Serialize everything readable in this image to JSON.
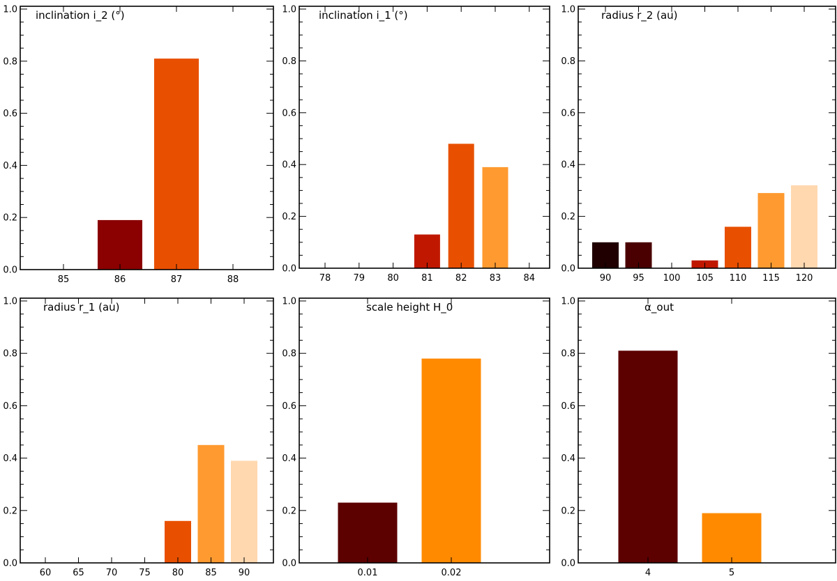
{
  "chart_data": [
    {
      "type": "bar",
      "title": "inclination i_2 (°)",
      "categories": [
        "85",
        "86",
        "87",
        "88"
      ],
      "values": [
        0,
        0.19,
        0.81,
        0
      ],
      "colors": [
        "#8b0000",
        "#8b0000",
        "#e85000",
        "#e85000"
      ],
      "ylim": [
        0,
        1.0
      ],
      "yticks": [
        "0.0",
        "0.2",
        "0.4",
        "0.6",
        "0.8",
        "1.0"
      ],
      "xlabel": "",
      "ylabel": ""
    },
    {
      "type": "bar",
      "title": "inclination i_1 (°)",
      "categories": [
        "78",
        "79",
        "80",
        "81",
        "82",
        "83",
        "84"
      ],
      "values": [
        0,
        0,
        0,
        0.13,
        0.48,
        0.39,
        0
      ],
      "colors": [
        "#5a0000",
        "#5a0000",
        "#5a0000",
        "#c01800",
        "#e85000",
        "#ff9a30",
        "#ffd8b0"
      ],
      "ylim": [
        0,
        1.0
      ],
      "yticks": [
        "0.0",
        "0.2",
        "0.4",
        "0.6",
        "0.8",
        "1.0"
      ],
      "xlabel": "",
      "ylabel": ""
    },
    {
      "type": "bar",
      "title": "radius r_2 (au)",
      "categories": [
        "90",
        "95",
        "100",
        "105",
        "110",
        "115",
        "120"
      ],
      "values": [
        0.1,
        0.1,
        0,
        0.03,
        0.16,
        0.29,
        0.32
      ],
      "colors": [
        "#200000",
        "#4a0000",
        "#7a0000",
        "#c01800",
        "#e85000",
        "#ff9a30",
        "#ffd8b0"
      ],
      "ylim": [
        0,
        1.0
      ],
      "yticks": [
        "0.0",
        "0.2",
        "0.4",
        "0.6",
        "0.8",
        "1.0"
      ],
      "xlabel": "",
      "ylabel": ""
    },
    {
      "type": "bar",
      "title": "radius r_1 (au)",
      "categories": [
        "60",
        "65",
        "70",
        "75",
        "80",
        "85",
        "90"
      ],
      "values": [
        0,
        0,
        0,
        0,
        0.16,
        0.45,
        0.39
      ],
      "colors": [
        "#200000",
        "#4a0000",
        "#7a0000",
        "#c01800",
        "#e85000",
        "#ff9a30",
        "#ffd8b0"
      ],
      "ylim": [
        0,
        1.0
      ],
      "yticks": [
        "0.0",
        "0.2",
        "0.4",
        "0.6",
        "0.8",
        "1.0"
      ],
      "xlabel": "",
      "ylabel": ""
    },
    {
      "type": "bar",
      "title": "scale height H_0",
      "categories": [
        "0.01",
        "0.02"
      ],
      "values": [
        0.23,
        0.78
      ],
      "colors": [
        "#5c0000",
        "#ff8a00"
      ],
      "ylim": [
        0,
        1.0
      ],
      "yticks": [
        "0.0",
        "0.2",
        "0.4",
        "0.6",
        "0.8",
        "1.0"
      ],
      "xlabel": "",
      "ylabel": ""
    },
    {
      "type": "bar",
      "title": "α_out",
      "categories": [
        "4",
        "5"
      ],
      "values": [
        0.81,
        0.19
      ],
      "colors": [
        "#5c0000",
        "#ff8a00"
      ],
      "ylim": [
        0,
        1.0
      ],
      "yticks": [
        "0.0",
        "0.2",
        "0.4",
        "0.6",
        "0.8",
        "1.0"
      ],
      "xlabel": "",
      "ylabel": ""
    }
  ]
}
